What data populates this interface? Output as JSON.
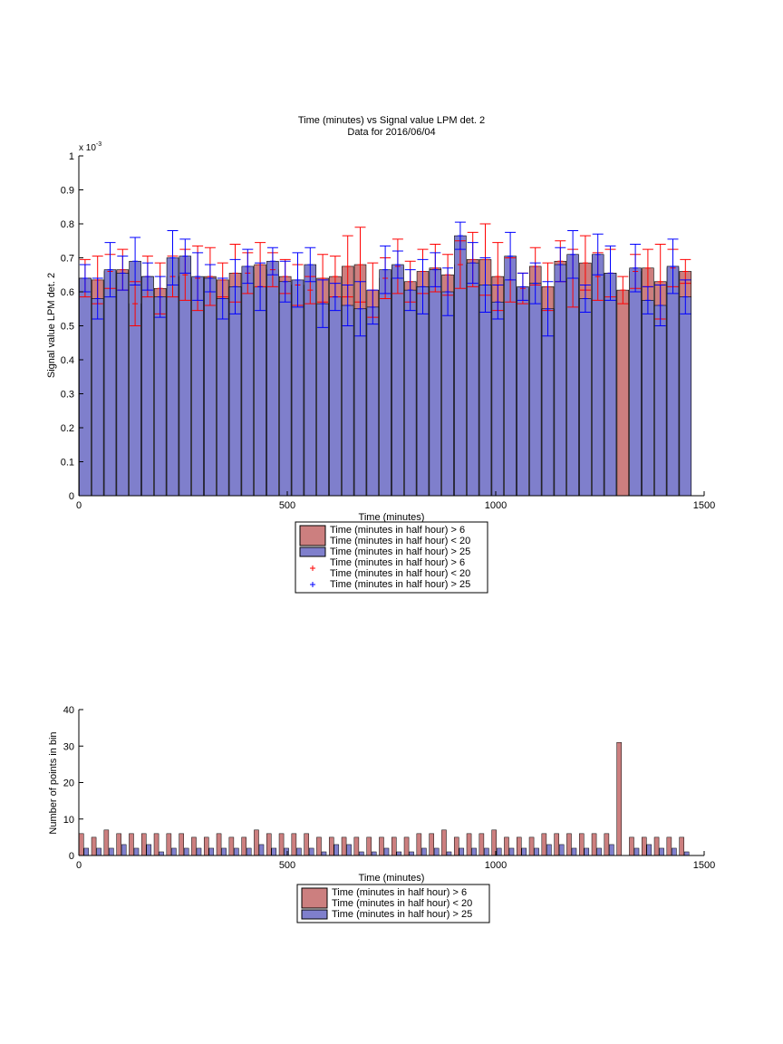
{
  "chart_data": [
    {
      "type": "bar",
      "title": "Time (minutes) vs Signal value LPM det. 2",
      "subtitle": "Data for 2016/06/04",
      "xlabel": "Time (minutes)",
      "ylabel": "Signal value LPM det. 2",
      "y_exponent_label": "x 10",
      "y_exponent_power": "-3",
      "xlim": [
        0,
        1500
      ],
      "ylim": [
        0,
        1
      ],
      "xticks": [
        "0",
        "500",
        "1000",
        "1500"
      ],
      "yticks": [
        "0",
        "0.1",
        "0.2",
        "0.3",
        "0.4",
        "0.5",
        "0.6",
        "0.7",
        "0.8",
        "0.9",
        "1"
      ],
      "bin_width": 30,
      "grid": false,
      "legend_position": "below",
      "legend": [
        {
          "name": "Time (minutes in half hour) > 6\nTime (minutes in half hour) < 20",
          "style": "bar",
          "color": "#cc7f7f"
        },
        {
          "name": "Time (minutes in half hour) > 25",
          "style": "bar",
          "color": "#7f7fcc"
        },
        {
          "name": "Time (minutes in half hour) > 6\nTime (minutes in half hour) < 20",
          "style": "marker",
          "color": "#ff0000"
        },
        {
          "name": "Time (minutes in half hour) > 25",
          "style": "marker",
          "color": "#0000ff"
        }
      ],
      "x": [
        0,
        30,
        60,
        90,
        120,
        150,
        180,
        210,
        240,
        270,
        300,
        330,
        360,
        390,
        420,
        450,
        480,
        510,
        540,
        570,
        600,
        630,
        660,
        690,
        720,
        750,
        780,
        810,
        840,
        870,
        900,
        930,
        960,
        990,
        1020,
        1050,
        1080,
        1110,
        1140,
        1170,
        1200,
        1230,
        1260,
        1290,
        1320,
        1350,
        1380,
        1410,
        1440
      ],
      "series": [
        {
          "color": "#cc7f7f",
          "marker_color": "#ff0000",
          "values": [
            0.64,
            0.635,
            0.66,
            0.665,
            0.565,
            0.645,
            0.61,
            0.645,
            0.65,
            0.64,
            0.645,
            0.635,
            0.655,
            0.655,
            0.68,
            0.665,
            0.645,
            0.62,
            0.605,
            0.64,
            0.645,
            0.675,
            0.68,
            0.605,
            0.64,
            0.675,
            0.63,
            0.66,
            0.67,
            0.65,
            0.68,
            0.695,
            0.695,
            0.645,
            0.635,
            0.61,
            0.675,
            0.615,
            0.69,
            0.64,
            0.685,
            0.645,
            0.655,
            0.605,
            0.66,
            0.67,
            0.63,
            0.67,
            0.66
          ],
          "error": [
            0.055,
            0.07,
            0.05,
            0.06,
            0.065,
            0.06,
            0.075,
            0.06,
            0.075,
            0.095,
            0.085,
            0.05,
            0.085,
            0.06,
            0.065,
            0.05,
            0.05,
            0.06,
            0.04,
            0.07,
            0.06,
            0.09,
            0.11,
            0.08,
            0.06,
            0.08,
            0.06,
            0.065,
            0.07,
            0.06,
            0.07,
            0.08,
            0.105,
            0.1,
            0.065,
            0.045,
            0.055,
            0.07,
            0.06,
            0.085,
            0.08,
            0.07,
            0.07,
            0.04,
            0.05,
            0.055,
            0.11,
            0.055,
            0.035
          ]
        },
        {
          "color": "#7f7fcc",
          "marker_color": "#0000ff",
          "values": [
            0.64,
            0.58,
            0.665,
            0.655,
            0.69,
            0.645,
            0.585,
            0.7,
            0.705,
            0.645,
            0.64,
            0.58,
            0.615,
            0.675,
            0.615,
            0.69,
            0.63,
            0.635,
            0.68,
            0.565,
            0.585,
            0.56,
            0.55,
            0.555,
            0.665,
            0.68,
            0.605,
            0.615,
            0.665,
            0.6,
            0.765,
            0.685,
            0.62,
            0.57,
            0.705,
            0.615,
            0.625,
            0.55,
            0.68,
            0.71,
            0.58,
            0.71,
            0.655,
            0.0,
            0.67,
            0.575,
            0.56,
            0.675,
            0.585
          ]
        }
      ]
    },
    {
      "type": "bar",
      "title": "",
      "xlabel": "Time (minutes)",
      "ylabel": "Number of points in bin",
      "xlim": [
        0,
        1500
      ],
      "ylim": [
        0,
        40
      ],
      "xticks": [
        "0",
        "500",
        "1000",
        "1500"
      ],
      "yticks": [
        "0",
        "10",
        "20",
        "30",
        "40"
      ],
      "bin_width": 30,
      "grid": false,
      "legend_position": "below",
      "legend": [
        {
          "name": "Time (minutes in half hour) > 6\nTime (minutes in half hour) < 20",
          "style": "bar",
          "color": "#cc7f7f"
        },
        {
          "name": "Time (minutes in half hour) > 25",
          "style": "bar",
          "color": "#7f7fcc"
        }
      ],
      "x": [
        0,
        30,
        60,
        90,
        120,
        150,
        180,
        210,
        240,
        270,
        300,
        330,
        360,
        390,
        420,
        450,
        480,
        510,
        540,
        570,
        600,
        630,
        660,
        690,
        720,
        750,
        780,
        810,
        840,
        870,
        900,
        930,
        960,
        990,
        1020,
        1050,
        1080,
        1110,
        1140,
        1170,
        1200,
        1230,
        1260,
        1290,
        1320,
        1350,
        1380,
        1410,
        1440
      ],
      "series": [
        {
          "color": "#cc7f7f",
          "values": [
            6,
            5,
            7,
            6,
            6,
            6,
            6,
            6,
            6,
            5,
            5,
            6,
            5,
            5,
            7,
            6,
            6,
            6,
            6,
            5,
            5,
            5,
            5,
            5,
            5,
            5,
            5,
            6,
            6,
            7,
            5,
            6,
            6,
            7,
            5,
            5,
            5,
            6,
            6,
            6,
            6,
            6,
            6,
            31,
            5,
            5,
            5,
            5,
            5
          ]
        },
        {
          "color": "#7f7fcc",
          "values": [
            2,
            2,
            2,
            3,
            2,
            3,
            1,
            2,
            2,
            2,
            2,
            2,
            2,
            2,
            3,
            2,
            2,
            2,
            2,
            1,
            3,
            3,
            1,
            1,
            2,
            1,
            1,
            2,
            2,
            1,
            2,
            2,
            2,
            2,
            2,
            2,
            2,
            3,
            3,
            2,
            2,
            2,
            3,
            0,
            2,
            3,
            2,
            2,
            1
          ]
        }
      ]
    }
  ]
}
